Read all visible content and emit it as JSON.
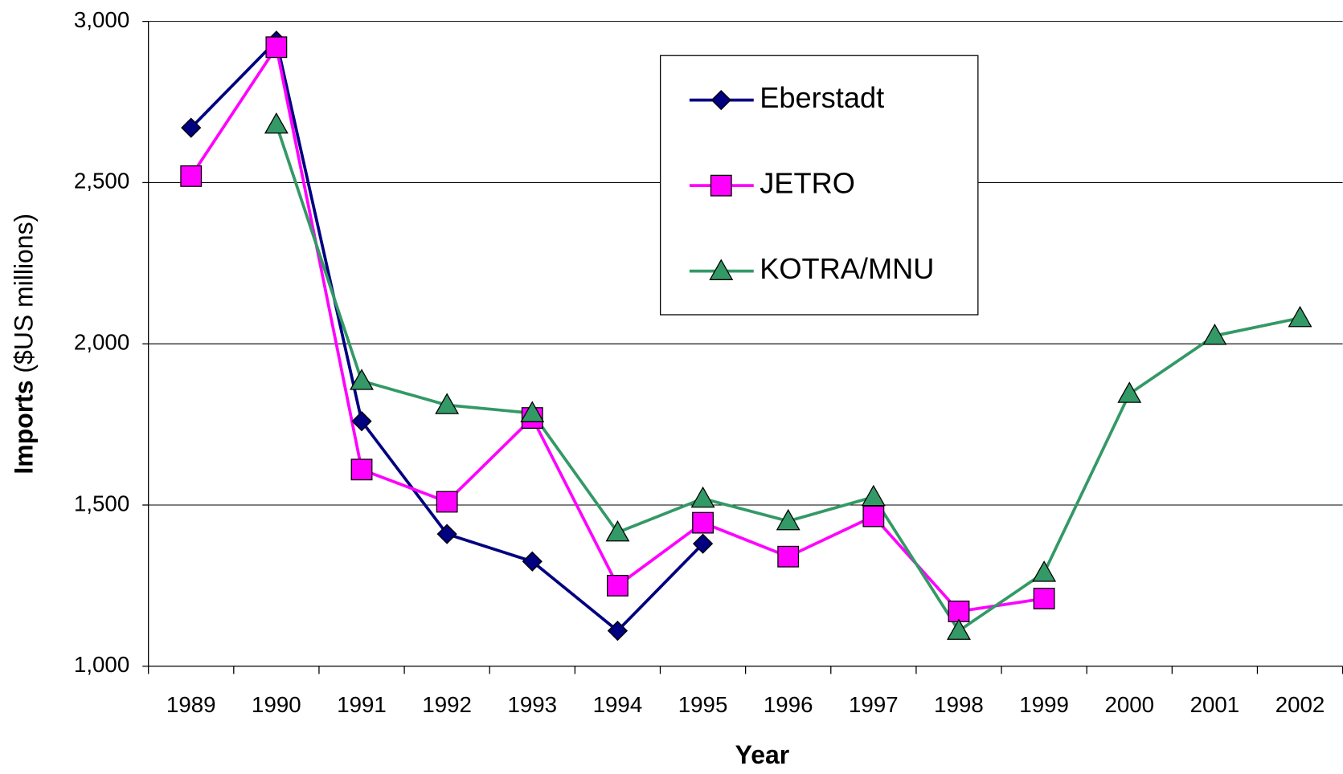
{
  "chart_data": {
    "type": "line",
    "y_label": [
      "Imports",
      "($US millions)"
    ],
    "x_label": "Year",
    "categories": [
      "1989",
      "1990",
      "1991",
      "1992",
      "1993",
      "1994",
      "1995",
      "1996",
      "1997",
      "1998",
      "1999",
      "2000",
      "2001",
      "2002"
    ],
    "series": [
      {
        "name": "Eberstadt",
        "color": "#000080",
        "marker": "diamond",
        "values": [
          2670,
          2940,
          1760,
          1410,
          1325,
          1110,
          1380,
          null,
          null,
          null,
          null,
          null,
          null,
          null
        ]
      },
      {
        "name": "JETRO",
        "color": "#ff00ff",
        "marker": "square",
        "values": [
          2520,
          2920,
          1610,
          1510,
          1770,
          1250,
          1445,
          1340,
          1465,
          1170,
          1210,
          null,
          null,
          null
        ]
      },
      {
        "name": "KOTRA/MNU",
        "color": "#339966",
        "marker": "triangle",
        "values": [
          null,
          2680,
          1885,
          1810,
          1785,
          1415,
          1520,
          1450,
          1525,
          1110,
          1290,
          1845,
          2025,
          2080
        ]
      }
    ],
    "ylim": [
      1000,
      3000
    ],
    "yticks": [
      {
        "value": 1000,
        "label": "1,000"
      },
      {
        "value": 1500,
        "label": "1,500"
      },
      {
        "value": 2000,
        "label": "2,000"
      },
      {
        "value": 2500,
        "label": "2,500"
      },
      {
        "value": 3000,
        "label": "3,000"
      }
    ],
    "grid": true,
    "legend": "top-center"
  }
}
